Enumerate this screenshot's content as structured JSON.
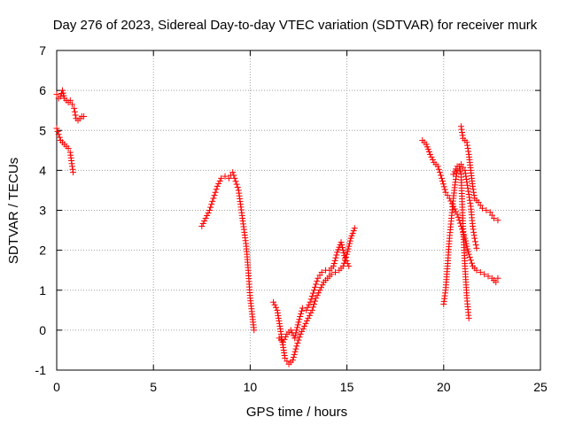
{
  "chart_data": {
    "type": "scatter",
    "title": "Day 276 of 2023, Sidereal Day-to-day VTEC variation (SDTVAR) for receiver murk",
    "xlabel": "GPS time / hours",
    "ylabel": "SDTVAR / TECUs",
    "xlim": [
      0,
      25
    ],
    "ylim": [
      -1,
      7
    ],
    "xticks": [
      0,
      5,
      10,
      15,
      20,
      25
    ],
    "yticks": [
      -1,
      0,
      1,
      2,
      3,
      4,
      5,
      6,
      7
    ],
    "grid": true,
    "marker": "+",
    "color": "#ff0000",
    "series": [
      {
        "name": "s1",
        "x": [
          0.0,
          0.1,
          0.2,
          0.3,
          0.4,
          0.5,
          0.6,
          0.7,
          0.8,
          0.9,
          1.0,
          1.1,
          1.2,
          1.3,
          1.4
        ],
        "y": [
          5.9,
          5.8,
          5.85,
          6.0,
          5.8,
          5.75,
          5.7,
          5.75,
          5.65,
          5.55,
          5.3,
          5.25,
          5.3,
          5.35,
          5.35
        ]
      },
      {
        "name": "s2",
        "x": [
          0.0,
          0.1,
          0.2,
          0.3,
          0.4,
          0.5,
          0.6,
          0.7,
          0.8,
          0.85
        ],
        "y": [
          5.05,
          4.9,
          4.75,
          4.7,
          4.65,
          4.6,
          4.55,
          4.45,
          4.1,
          3.95
        ]
      },
      {
        "name": "s3",
        "x": [
          7.5,
          7.7,
          7.9,
          8.1,
          8.3,
          8.5,
          8.7,
          8.9,
          9.1,
          9.2,
          9.4,
          9.6,
          9.8,
          9.9,
          10.0,
          10.1,
          10.2
        ],
        "y": [
          2.6,
          2.8,
          3.0,
          3.3,
          3.6,
          3.8,
          3.85,
          3.8,
          3.95,
          3.8,
          3.5,
          2.8,
          2.1,
          1.5,
          0.8,
          0.4,
          0.0
        ]
      },
      {
        "name": "s4",
        "x": [
          11.2,
          11.4,
          11.6,
          11.8,
          12.0,
          12.2,
          12.4,
          12.6,
          12.8,
          13.0,
          13.2,
          13.4,
          13.6,
          13.8,
          14.0,
          14.2,
          14.4,
          14.6,
          14.8,
          15.0,
          15.2,
          15.4
        ],
        "y": [
          0.7,
          0.5,
          -0.1,
          -0.7,
          -0.85,
          -0.75,
          -0.4,
          -0.1,
          0.1,
          0.3,
          0.5,
          0.8,
          1.0,
          1.2,
          1.3,
          1.4,
          1.45,
          1.5,
          1.6,
          1.9,
          2.3,
          2.55
        ]
      },
      {
        "name": "s5",
        "x": [
          11.5,
          11.7,
          11.9,
          12.1,
          12.3,
          12.5,
          12.7,
          12.9,
          13.1,
          13.3,
          13.5,
          13.7,
          13.9,
          14.1,
          14.3,
          14.5,
          14.7,
          14.9,
          15.1
        ],
        "y": [
          -0.2,
          -0.3,
          -0.1,
          0.0,
          -0.2,
          0.2,
          0.55,
          0.5,
          0.7,
          1.0,
          1.3,
          1.45,
          1.5,
          1.5,
          1.6,
          1.95,
          2.2,
          1.8,
          1.6
        ]
      },
      {
        "name": "s6",
        "x": [
          18.9,
          19.1,
          19.3,
          19.5,
          19.7,
          19.9,
          20.1,
          20.3,
          20.5,
          20.7,
          20.9,
          21.1,
          21.3,
          21.5,
          21.7,
          21.9,
          22.1,
          22.3,
          22.5,
          22.7,
          22.8
        ],
        "y": [
          4.75,
          4.65,
          4.4,
          4.2,
          4.1,
          3.8,
          3.45,
          3.3,
          3.1,
          2.9,
          2.6,
          2.3,
          1.9,
          1.6,
          1.5,
          1.45,
          1.4,
          1.35,
          1.3,
          1.2,
          1.3
        ]
      },
      {
        "name": "s7",
        "x": [
          20.0,
          20.1,
          20.2,
          20.3,
          20.4,
          20.5,
          20.6,
          20.7,
          20.8,
          20.9,
          21.0,
          21.1,
          21.2,
          21.3
        ],
        "y": [
          0.65,
          1.0,
          1.6,
          2.3,
          2.8,
          3.3,
          3.7,
          4.0,
          4.1,
          3.9,
          2.6,
          1.6,
          0.8,
          0.3
        ]
      },
      {
        "name": "s8",
        "x": [
          20.9,
          21.0,
          21.1,
          21.2,
          21.3,
          21.4,
          21.5,
          21.6,
          21.8,
          22.0,
          22.2,
          22.4,
          22.6,
          22.8
        ],
        "y": [
          5.1,
          4.8,
          4.75,
          4.7,
          4.4,
          4.0,
          3.6,
          3.3,
          3.2,
          3.05,
          3.0,
          2.95,
          2.8,
          2.75
        ]
      },
      {
        "name": "s9",
        "x": [
          20.5,
          20.7,
          20.9,
          21.1,
          21.2,
          21.3,
          21.4,
          21.5,
          21.6,
          21.7
        ],
        "y": [
          3.9,
          4.1,
          4.15,
          4.0,
          3.7,
          3.4,
          3.1,
          2.6,
          2.3,
          2.05
        ]
      }
    ]
  }
}
